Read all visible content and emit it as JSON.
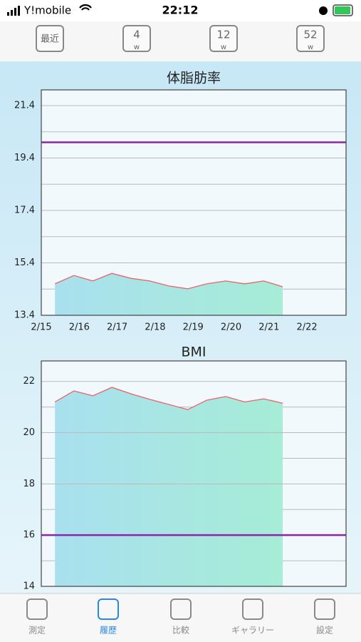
{
  "status_bar": {
    "carrier": "Y!mobile",
    "time": "22:12"
  },
  "period_tabs": [
    {
      "label": "最近"
    },
    {
      "label": "4",
      "unit": "w"
    },
    {
      "label": "12",
      "unit": "w"
    },
    {
      "label": "52",
      "unit": "w"
    }
  ],
  "chart_data": [
    {
      "type": "line",
      "title": "体脂肪率",
      "x": [
        0.36,
        0.86,
        1.36,
        1.86,
        2.36,
        2.86,
        3.36,
        3.86,
        4.36,
        4.86,
        5.36,
        5.86,
        6.36
      ],
      "series": [
        {
          "color": "#e8646a",
          "values": [
            14.6,
            14.92,
            14.71,
            15.0,
            14.81,
            14.71,
            14.52,
            14.41,
            14.6,
            14.71,
            14.6,
            14.71,
            14.49
          ]
        }
      ],
      "reference_line": {
        "value": 20.0,
        "color": "#8e24aa"
      },
      "xlim": [
        0,
        8.03
      ],
      "xticks": [
        {
          "value": 0,
          "label": "2/15"
        },
        {
          "value": 1,
          "label": "2/16"
        },
        {
          "value": 2,
          "label": "2/17"
        },
        {
          "value": 3,
          "label": "2/18"
        },
        {
          "value": 4,
          "label": "2/19"
        },
        {
          "value": 5,
          "label": "2/20"
        },
        {
          "value": 6,
          "label": "2/21"
        },
        {
          "value": 7,
          "label": "2/22"
        }
      ],
      "ylim": [
        13.4,
        22.0
      ],
      "yticks": [
        13.4,
        15.4,
        17.4,
        19.4,
        21.4
      ],
      "minor_yticks": [
        14.4,
        16.4,
        18.4,
        20.4
      ],
      "grid": true
    },
    {
      "type": "line",
      "title": "BMI",
      "x": [
        0.36,
        0.86,
        1.36,
        1.86,
        2.36,
        2.86,
        3.36,
        3.86,
        4.36,
        4.86,
        5.36,
        5.86,
        6.36
      ],
      "series": [
        {
          "color": "#e8646a",
          "values": [
            21.2,
            21.63,
            21.44,
            21.77,
            21.52,
            21.3,
            21.1,
            20.9,
            21.27,
            21.41,
            21.2,
            21.32,
            21.15
          ]
        }
      ],
      "reference_line": {
        "value": 16,
        "color": "#8e24aa"
      },
      "xlim": [
        0,
        8.03
      ],
      "ylim": [
        14,
        22.8
      ],
      "yticks": [
        14,
        16,
        18,
        20,
        22
      ],
      "minor_yticks": [
        15,
        17,
        19,
        21
      ],
      "grid": true
    }
  ],
  "tab_bar": {
    "items": [
      "測定",
      "履歴",
      "比較",
      "ギャラリー",
      "設定"
    ],
    "active": 1
  }
}
